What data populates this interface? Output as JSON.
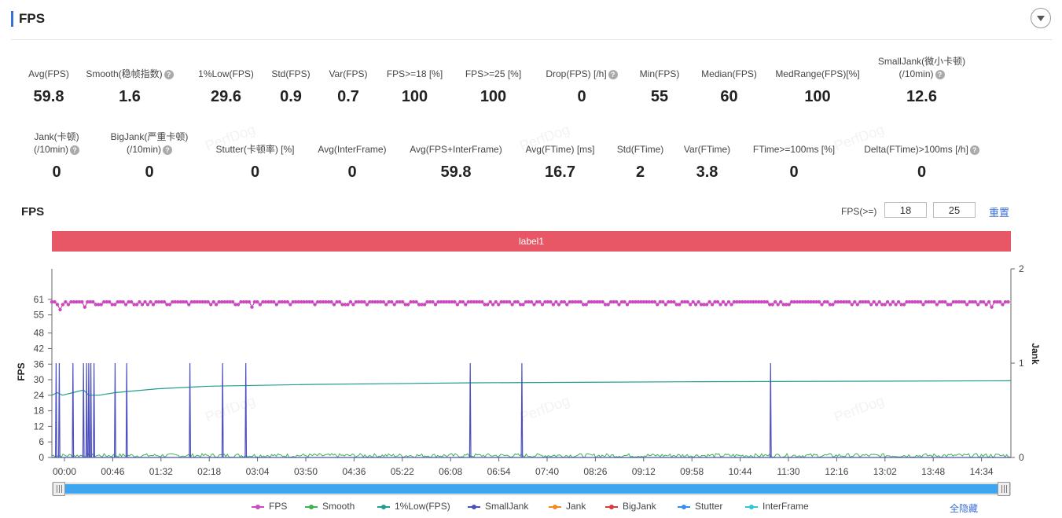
{
  "header": {
    "title": "FPS"
  },
  "metrics_row1": [
    {
      "label": "Avg(FPS)",
      "value": "59.8",
      "help": false
    },
    {
      "label": "Smooth(稳帧指数)",
      "value": "1.6",
      "help": true
    },
    {
      "label": "1%Low(FPS)",
      "value": "29.6",
      "help": false
    },
    {
      "label": "Std(FPS)",
      "value": "0.9",
      "help": false
    },
    {
      "label": "Var(FPS)",
      "value": "0.7",
      "help": false
    },
    {
      "label": "FPS>=18 [%]",
      "value": "100",
      "help": false
    },
    {
      "label": "FPS>=25 [%]",
      "value": "100",
      "help": false
    },
    {
      "label": "Drop(FPS) [/h]",
      "value": "0",
      "help": true
    },
    {
      "label": "Min(FPS)",
      "value": "55",
      "help": false
    },
    {
      "label": "Median(FPS)",
      "value": "60",
      "help": false
    },
    {
      "label": "MedRange(FPS)[%]",
      "value": "100",
      "help": false
    },
    {
      "label": "SmallJank(微小卡顿)",
      "label2": "(/10min)",
      "value": "12.6",
      "help": true
    }
  ],
  "metrics_row2": [
    {
      "label": "Jank(卡顿)",
      "label2": "(/10min)",
      "value": "0",
      "help": true
    },
    {
      "label": "BigJank(严重卡顿)",
      "label2": "(/10min)",
      "value": "0",
      "help": true
    },
    {
      "label": "Stutter(卡顿率) [%]",
      "value": "0",
      "help": false
    },
    {
      "label": "Avg(InterFrame)",
      "value": "0",
      "help": false
    },
    {
      "label": "Avg(FPS+InterFrame)",
      "value": "59.8",
      "help": false
    },
    {
      "label": "Avg(FTime) [ms]",
      "value": "16.7",
      "help": false
    },
    {
      "label": "Std(FTime)",
      "value": "2",
      "help": false
    },
    {
      "label": "Var(FTime)",
      "value": "3.8",
      "help": false
    },
    {
      "label": "FTime>=100ms [%]",
      "value": "0",
      "help": false
    },
    {
      "label": "Delta(FTime)>100ms [/h]",
      "value": "0",
      "help": true
    }
  ],
  "watermark": "PerfDog",
  "fps_section": {
    "title": "FPS",
    "threshold_label": "FPS(>=)",
    "threshold1": "18",
    "threshold2": "25",
    "reset_label": "重置",
    "label_bar": "label1"
  },
  "legend": {
    "items": [
      {
        "name": "FPS",
        "color": "#c94bbf"
      },
      {
        "name": "Smooth",
        "color": "#3cb44b"
      },
      {
        "name": "1%Low(FPS)",
        "color": "#1f9e8e"
      },
      {
        "name": "SmallJank",
        "color": "#4b4fc0"
      },
      {
        "name": "Jank",
        "color": "#f08a24"
      },
      {
        "name": "BigJank",
        "color": "#d93a3a"
      },
      {
        "name": "Stutter",
        "color": "#3a8ee6"
      },
      {
        "name": "InterFrame",
        "color": "#2fc6d6"
      }
    ],
    "hide_all": "全隐藏"
  },
  "chart_data": {
    "type": "line",
    "xlabel": "",
    "ylabel": "FPS",
    "y2label": "Jank",
    "x_ticks": [
      "00:00",
      "00:46",
      "01:32",
      "02:18",
      "03:04",
      "03:50",
      "04:36",
      "05:22",
      "06:08",
      "06:54",
      "07:40",
      "08:26",
      "09:12",
      "09:58",
      "10:44",
      "11:30",
      "12:16",
      "13:02",
      "13:48",
      "14:34"
    ],
    "y_ticks": [
      0,
      6,
      12,
      18,
      24,
      30,
      36,
      42,
      48,
      55,
      61
    ],
    "y2_ticks": [
      0,
      1,
      2
    ],
    "ylim": [
      0,
      67
    ],
    "y2lim": [
      0,
      2
    ],
    "x_range_seconds": [
      0,
      910
    ],
    "series": [
      {
        "name": "FPS",
        "color": "#c94bbf",
        "baseline": 60,
        "dips": [
          [
            8,
            57
          ],
          [
            15,
            55
          ],
          [
            31,
            58
          ],
          [
            70,
            59
          ],
          [
            190,
            58
          ],
          [
            275,
            58
          ],
          [
            880,
            58
          ],
          [
            892,
            58
          ]
        ]
      },
      {
        "name": "Smooth",
        "color": "#3cb44b",
        "baseline": 1.5
      },
      {
        "name": "1%Low(FPS)",
        "color": "#1f9e8e",
        "points": [
          [
            0,
            24
          ],
          [
            5,
            25
          ],
          [
            10,
            24
          ],
          [
            20,
            25
          ],
          [
            30,
            26
          ],
          [
            35,
            24
          ],
          [
            45,
            24
          ],
          [
            60,
            25
          ],
          [
            100,
            26.5
          ],
          [
            150,
            27.5
          ],
          [
            250,
            28.2
          ],
          [
            400,
            28.8
          ],
          [
            600,
            29.2
          ],
          [
            910,
            29.6
          ]
        ]
      },
      {
        "name": "SmallJank",
        "color": "#4b4fc0",
        "spikes_sec": [
          4,
          7,
          20,
          30,
          33,
          35,
          37,
          40,
          60,
          71,
          131,
          162,
          184,
          397,
          446,
          682
        ]
      },
      {
        "name": "Jank",
        "color": "#f08a24",
        "values": []
      },
      {
        "name": "BigJank",
        "color": "#d93a3a",
        "values": []
      },
      {
        "name": "Stutter",
        "color": "#3a8ee6",
        "values": []
      },
      {
        "name": "InterFrame",
        "color": "#2fc6d6",
        "values": []
      }
    ],
    "grid": false,
    "legend_position": "bottom"
  }
}
